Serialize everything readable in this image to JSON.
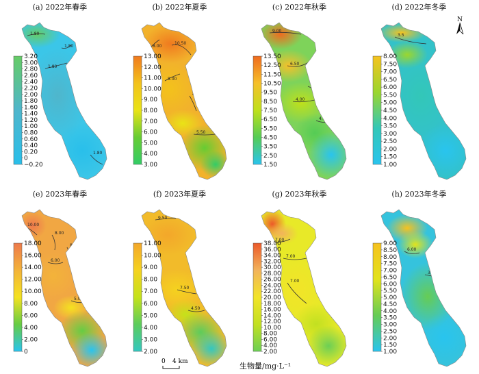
{
  "panels": [
    {
      "title": "(a) 2022年春季",
      "ticks": [
        "3.20",
        "3.00",
        "2.80",
        "2.60",
        "2.40",
        "2.20",
        "2.00",
        "1.80",
        "1.60",
        "1.40",
        "1.20",
        "1.00",
        "0.80",
        "0.60",
        "0.40",
        "0.20",
        "0",
        "−0.20"
      ],
      "colors": [
        "#66cc66",
        "#4fb6cc",
        "#29bfea"
      ],
      "bg": "#3bc6e8",
      "contours": [
        "1.80",
        "1.80",
        "1.80",
        "1.80"
      ]
    },
    {
      "title": "(b) 2022年夏季",
      "ticks": [
        "13.00",
        "12.00",
        "11.00",
        "10.00",
        "9.00",
        "8.00",
        "7.00",
        "6.00",
        "5.00",
        "4.00",
        "3.00"
      ],
      "colors": [
        "#f07a1f",
        "#f3c21b",
        "#e9e316",
        "#66cc33",
        "#33cc66"
      ],
      "bg": "#f2b22c",
      "contours": [
        "8.00",
        "10.50",
        "8.00",
        "8.00",
        "5.50"
      ]
    },
    {
      "title": "(c) 2022年秋季",
      "ticks": [
        "13.50",
        "12.50",
        "11.50",
        "10.50",
        "9.50",
        "8.50",
        "7.50",
        "6.50",
        "5.50",
        "4.50",
        "3.50",
        "2.50",
        "1.50"
      ],
      "colors": [
        "#ef6b1f",
        "#f6c02a",
        "#bfe01a",
        "#55cc55",
        "#29c4ee"
      ],
      "bg": "#7ed35a",
      "contours": [
        "9.00",
        "6.50",
        "4.00",
        "4.00",
        "4.00"
      ]
    },
    {
      "title": "(d) 2022年冬季",
      "ticks": [
        "8.00",
        "7.50",
        "7.00",
        "6.50",
        "6.00",
        "5.50",
        "5.00",
        "4.50",
        "4.00",
        "3.50",
        "3.00",
        "2.50",
        "2.00",
        "1.50",
        "1.00"
      ],
      "colors": [
        "#f6c31f",
        "#9bd62e",
        "#33c7b8",
        "#29c4ee"
      ],
      "bg": "#33c2c9",
      "contours": [
        "3.5"
      ]
    },
    {
      "title": "(e) 2023年春季",
      "ticks": [
        "18.00",
        "16.00",
        "14.00",
        "12.00",
        "10.00",
        "8.00",
        "6.00",
        "4.00",
        "2.00",
        "0"
      ],
      "colors": [
        "#ee7a4c",
        "#f3b33a",
        "#f4e220",
        "#66cc44",
        "#29c4ee"
      ],
      "bg": "#f1a743",
      "contours": [
        "10.00",
        "8.00",
        "8.00",
        "6.00",
        "5.00"
      ]
    },
    {
      "title": "(f) 2023年夏季",
      "ticks": [
        "11.00",
        "10.00",
        "9.00",
        "8.00",
        "7.00",
        "6.00",
        "5.00",
        "4.00",
        "3.00",
        "2.00"
      ],
      "colors": [
        "#f3a72a",
        "#f5d21f",
        "#c4e21a",
        "#5ccc5c",
        "#33c7c0"
      ],
      "bg": "#f2bb2a",
      "contours": [
        "9.50",
        "7.50",
        "4.50"
      ]
    },
    {
      "title": "(g) 2023年秋季",
      "ticks": [
        "38.00",
        "36.00",
        "34.00",
        "32.00",
        "30.00",
        "28.00",
        "26.00",
        "24.00",
        "22.00",
        "20.00",
        "18.00",
        "16.00",
        "14.00",
        "12.00",
        "10.00",
        "8.00",
        "6.00",
        "4.00",
        "2.00"
      ],
      "colors": [
        "#ec5a2a",
        "#f2b35b",
        "#f2e428",
        "#c2e021",
        "#6ccf55"
      ],
      "bg": "#e8e928",
      "contours": [
        "7.00",
        "7.00",
        "7.00"
      ]
    },
    {
      "title": "(h) 2023年冬季",
      "ticks": [
        "9.00",
        "8.50",
        "8.00",
        "7.50",
        "7.00",
        "6.50",
        "6.00",
        "5.50",
        "5.00",
        "4.50",
        "4.00",
        "3.50",
        "3.00",
        "2.50",
        "2.00",
        "1.50",
        "1.00"
      ],
      "colors": [
        "#f6c21f",
        "#e2e31c",
        "#66cc55",
        "#29c4ee"
      ],
      "bg": "#35c3dd",
      "contours": [
        "6.00",
        "3.50"
      ]
    }
  ],
  "north_label": "N",
  "scale": {
    "zero": "0",
    "label": "4 km"
  },
  "unit_label": "生物量/mg·L⁻¹"
}
